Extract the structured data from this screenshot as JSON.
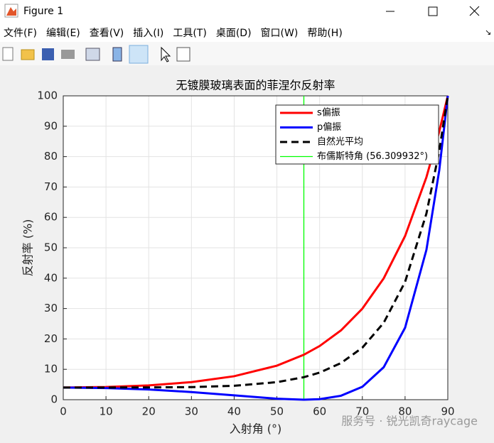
{
  "window": {
    "title": "Figure 1",
    "menu": [
      "文件(F)",
      "编辑(E)",
      "查看(V)",
      "插入(I)",
      "工具(T)",
      "桌面(D)",
      "窗口(W)",
      "帮助(H)"
    ]
  },
  "chart_data": {
    "type": "line",
    "title": "无镀膜玻璃表面的菲涅尔反射率",
    "x_label": "入射角 (°)",
    "y_label": "反射率 (%)",
    "xlim": [
      0,
      90
    ],
    "ylim": [
      0,
      100
    ],
    "xticks": [
      0,
      10,
      20,
      30,
      40,
      50,
      60,
      70,
      80,
      90
    ],
    "yticks": [
      0,
      10,
      20,
      30,
      40,
      50,
      60,
      70,
      80,
      90,
      100
    ],
    "grid": true,
    "legend": "upper right",
    "series": [
      {
        "name": "s偏振",
        "color": "#ff0000",
        "style": "solid",
        "x": [
          0,
          10,
          20,
          30,
          40,
          50,
          56.309932,
          60,
          65,
          70,
          75,
          80,
          85,
          88,
          90
        ],
        "values": [
          4,
          4.17,
          4.71,
          5.78,
          7.72,
          11.21,
          14.79,
          17.66,
          22.81,
          29.96,
          39.94,
          53.86,
          73.23,
          88.26,
          100
        ]
      },
      {
        "name": "p偏振",
        "color": "#0000ff",
        "style": "solid",
        "x": [
          0,
          10,
          20,
          30,
          40,
          50,
          56.309932,
          60,
          65,
          70,
          75,
          80,
          85,
          88,
          90
        ],
        "values": [
          4,
          3.84,
          3.35,
          2.52,
          1.43,
          0.33,
          0,
          0.18,
          1.3,
          4.25,
          10.68,
          23.68,
          49.33,
          75.48,
          100
        ]
      },
      {
        "name": "自然光平均",
        "color": "#000000",
        "style": "dashed",
        "x": [
          0,
          10,
          20,
          30,
          40,
          50,
          56.309932,
          60,
          65,
          70,
          75,
          80,
          85,
          88,
          90
        ],
        "values": [
          4,
          4.01,
          4.03,
          4.15,
          4.58,
          5.77,
          7.4,
          8.92,
          12.06,
          17.11,
          25.31,
          38.77,
          61.28,
          81.87,
          100
        ]
      },
      {
        "name": "布儒斯特角 (56.309932°)",
        "color": "#00ff00",
        "style": "thin",
        "x": [
          56.309932,
          56.309932
        ],
        "values": [
          0,
          100
        ]
      }
    ],
    "watermark": "服务号 · 锐光凯奇raycage"
  }
}
